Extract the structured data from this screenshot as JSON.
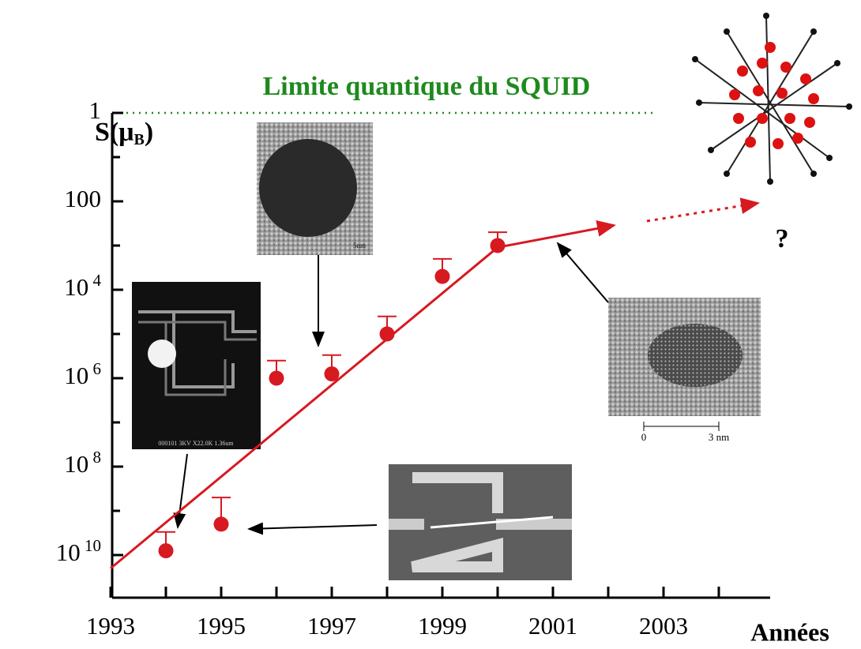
{
  "chart_data": {
    "type": "scatter",
    "title": "Limite quantique du SQUID",
    "title_color": "#1e8a1e",
    "y_label": "S(μ",
    "y_label_sub": "B",
    "y_label_end": ")",
    "x_label": "Années",
    "log_y": true,
    "xlim": [
      1993,
      2005
    ],
    "ylim": [
      100000000000,
      1
    ],
    "xticks": [
      1993,
      1995,
      1997,
      1999,
      2001,
      2003
    ],
    "xminor_ticks": [
      1994,
      1996,
      1998,
      2000,
      2002,
      2004
    ],
    "yticks": [
      1,
      100,
      {
        "value": 10000,
        "label": "10 4"
      },
      {
        "value": 1000000,
        "label": "10 6"
      },
      {
        "value": 100000000,
        "label": "10 8"
      },
      {
        "value": 10000000000,
        "label": "10 10"
      }
    ],
    "yminor_ticks": [
      10,
      1000,
      100000,
      10000000,
      1000000000
    ],
    "series": [
      {
        "kind": "points",
        "color": "#d71920",
        "x": [
          1994,
          1995,
          1996,
          1997,
          1998,
          1999,
          2000
        ],
        "values": [
          8000000000,
          2000000000,
          1000000,
          800000,
          100000,
          5000,
          1000
        ],
        "error_top": [
          3000000000,
          500000000,
          400000,
          300000,
          40000,
          2000,
          500
        ]
      },
      {
        "kind": "line",
        "color": "#d71920",
        "x": [
          1993,
          2000,
          2002.1
        ],
        "values": [
          20000000000,
          1100,
          350
        ]
      },
      {
        "kind": "dotted",
        "color": "#d71920",
        "x": [
          2002.7,
          2004.7
        ],
        "values": [
          280,
          110
        ]
      }
    ],
    "annotations": [
      "?",
      "0",
      "3 nm",
      "5nm",
      "000101  3KV  X22.0K  1.36um"
    ]
  }
}
